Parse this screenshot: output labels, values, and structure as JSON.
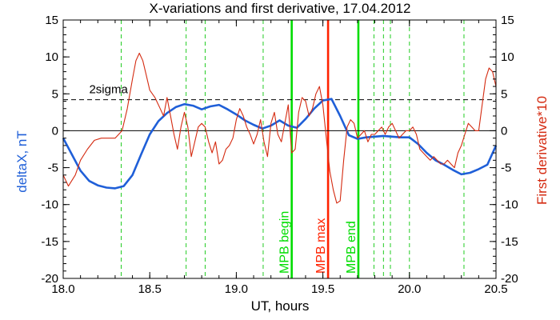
{
  "chart_data": {
    "type": "line",
    "title": "X-variations and first derivative, 17.04.2012",
    "xlabel": "UT, hours",
    "ylabel_left": "deltaX, nT",
    "ylabel_right": "First derivative*10",
    "xlim": [
      18.0,
      20.5
    ],
    "ylim": [
      -20,
      15
    ],
    "xticks": [
      "18.0",
      "18.5",
      "19.0",
      "19.5",
      "20.0",
      "20.5"
    ],
    "yticks": [
      "15",
      "10",
      "5",
      "0",
      "-5",
      "-10",
      "-15",
      "-20"
    ],
    "grid": false,
    "series": [
      {
        "name": "deltaX, nT",
        "color": "#1f5fd8",
        "x": [
          18.0,
          18.05,
          18.1,
          18.15,
          18.2,
          18.25,
          18.3,
          18.35,
          18.4,
          18.45,
          18.5,
          18.55,
          18.6,
          18.65,
          18.7,
          18.75,
          18.8,
          18.85,
          18.9,
          18.95,
          19.0,
          19.05,
          19.1,
          19.15,
          19.2,
          19.25,
          19.3,
          19.35,
          19.4,
          19.45,
          19.5,
          19.55,
          19.6,
          19.65,
          19.7,
          19.75,
          19.8,
          19.85,
          19.9,
          19.95,
          20.0,
          20.05,
          20.1,
          20.15,
          20.2,
          20.25,
          20.3,
          20.35,
          20.4,
          20.45,
          20.5
        ],
        "values": [
          -1.0,
          -3.2,
          -5.4,
          -6.8,
          -7.4,
          -7.7,
          -7.8,
          -7.5,
          -6.0,
          -3.2,
          -0.5,
          1.3,
          2.4,
          3.2,
          3.6,
          3.4,
          2.9,
          3.3,
          3.5,
          2.9,
          2.2,
          1.4,
          0.8,
          0.3,
          0.7,
          1.4,
          0.7,
          0.4,
          1.6,
          3.0,
          4.1,
          4.3,
          2.0,
          -0.6,
          -1.1,
          -0.9,
          -0.8,
          -0.7,
          -0.8,
          -0.9,
          -0.9,
          -1.8,
          -3.0,
          -4.0,
          -4.6,
          -5.3,
          -5.9,
          -5.7,
          -5.2,
          -4.6,
          -2.0
        ]
      },
      {
        "name": "First derivative*10",
        "color": "#d42a10",
        "x": [
          18.0,
          18.03,
          18.07,
          18.1,
          18.14,
          18.18,
          18.22,
          18.26,
          18.3,
          18.34,
          18.37,
          18.4,
          18.42,
          18.44,
          18.46,
          18.48,
          18.5,
          18.53,
          18.56,
          18.58,
          18.6,
          18.62,
          18.64,
          18.66,
          18.68,
          18.7,
          18.72,
          18.74,
          18.76,
          18.78,
          18.8,
          18.82,
          18.84,
          18.86,
          18.88,
          18.9,
          18.92,
          18.94,
          18.96,
          18.98,
          19.0,
          19.02,
          19.04,
          19.06,
          19.08,
          19.1,
          19.12,
          19.14,
          19.16,
          19.18,
          19.2,
          19.22,
          19.24,
          19.26,
          19.28,
          19.3,
          19.32,
          19.34,
          19.36,
          19.38,
          19.4,
          19.42,
          19.44,
          19.46,
          19.48,
          19.5,
          19.52,
          19.54,
          19.56,
          19.58,
          19.6,
          19.62,
          19.64,
          19.66,
          19.68,
          19.7,
          19.72,
          19.74,
          19.76,
          19.78,
          19.8,
          19.82,
          19.84,
          19.86,
          19.88,
          19.9,
          19.92,
          19.94,
          19.96,
          19.98,
          20.0,
          20.02,
          20.04,
          20.06,
          20.08,
          20.1,
          20.12,
          20.14,
          20.16,
          20.18,
          20.2,
          20.22,
          20.24,
          20.26,
          20.28,
          20.3,
          20.32,
          20.34,
          20.36,
          20.38,
          20.4,
          20.42,
          20.44,
          20.46,
          20.48,
          20.5
        ],
        "values": [
          -6.0,
          -7.5,
          -6.0,
          -4.0,
          -2.5,
          -1.3,
          -1.0,
          -1.0,
          -1.0,
          0.0,
          3.0,
          7.0,
          9.5,
          10.5,
          9.5,
          7.5,
          5.5,
          4.5,
          3.0,
          2.0,
          4.5,
          2.0,
          -0.5,
          -2.5,
          0.5,
          2.5,
          0.5,
          -3.5,
          -1.5,
          0.5,
          1.0,
          0.5,
          -1.5,
          -3.0,
          -1.5,
          -4.5,
          -4.0,
          -2.5,
          -2.0,
          -1.0,
          1.5,
          3.0,
          2.0,
          0.5,
          -0.5,
          -1.8,
          -0.5,
          1.5,
          -1.5,
          -3.5,
          1.0,
          2.5,
          -0.5,
          -1.5,
          1.0,
          3.5,
          -3.0,
          -2.5,
          2.5,
          4.5,
          4.0,
          2.0,
          3.0,
          5.0,
          6.0,
          3.5,
          -1.0,
          -5.5,
          -8.0,
          -9.8,
          -9.5,
          -4.0,
          0.5,
          1.5,
          1.0,
          -1.0,
          -0.5,
          0.0,
          -1.5,
          -0.5,
          -0.5,
          0.0,
          0.5,
          -0.5,
          0.5,
          1.0,
          0.0,
          -1.0,
          -0.5,
          0.0,
          0.0,
          0.5,
          -0.5,
          -2.5,
          -3.0,
          -3.5,
          -4.0,
          -3.5,
          -4.0,
          -4.5,
          -4.5,
          -4.0,
          -4.5,
          -5.0,
          -3.0,
          -2.0,
          -0.5,
          1.0,
          0.5,
          0.0,
          0.0,
          3.5,
          7.0,
          8.5,
          8.0,
          6.0
        ]
      }
    ],
    "annotations": [
      {
        "text": "2sigma",
        "y": 4.2
      }
    ],
    "vlines": [
      {
        "x": 18.335,
        "style": "dashed",
        "color": "#22cc22"
      },
      {
        "x": 18.71,
        "style": "dashed",
        "color": "#22cc22"
      },
      {
        "x": 18.82,
        "style": "dashed",
        "color": "#22cc22"
      },
      {
        "x": 19.155,
        "style": "dashed",
        "color": "#22cc22"
      },
      {
        "x": 19.32,
        "style": "solid",
        "color": "#00dd00",
        "label": "MPB begin"
      },
      {
        "x": 19.53,
        "style": "solid",
        "color": "#ff2200",
        "label": "MPB max"
      },
      {
        "x": 19.705,
        "style": "solid",
        "color": "#00dd00",
        "label": "MPB end"
      },
      {
        "x": 19.795,
        "style": "dashed",
        "color": "#22cc22"
      },
      {
        "x": 19.85,
        "style": "dashed",
        "color": "#22cc22"
      },
      {
        "x": 19.89,
        "style": "dashed",
        "color": "#22cc22"
      },
      {
        "x": 20.0,
        "style": "dashed",
        "color": "#22cc22"
      },
      {
        "x": 20.315,
        "style": "dashed",
        "color": "#22cc22"
      }
    ],
    "hlines": [
      {
        "y": 0,
        "style": "solid",
        "color": "#000000"
      },
      {
        "y": 4.2,
        "style": "dashed",
        "color": "#000000"
      }
    ],
    "ylabel_left_color": "#1f5fd8",
    "ylabel_right_color": "#d42a10"
  }
}
